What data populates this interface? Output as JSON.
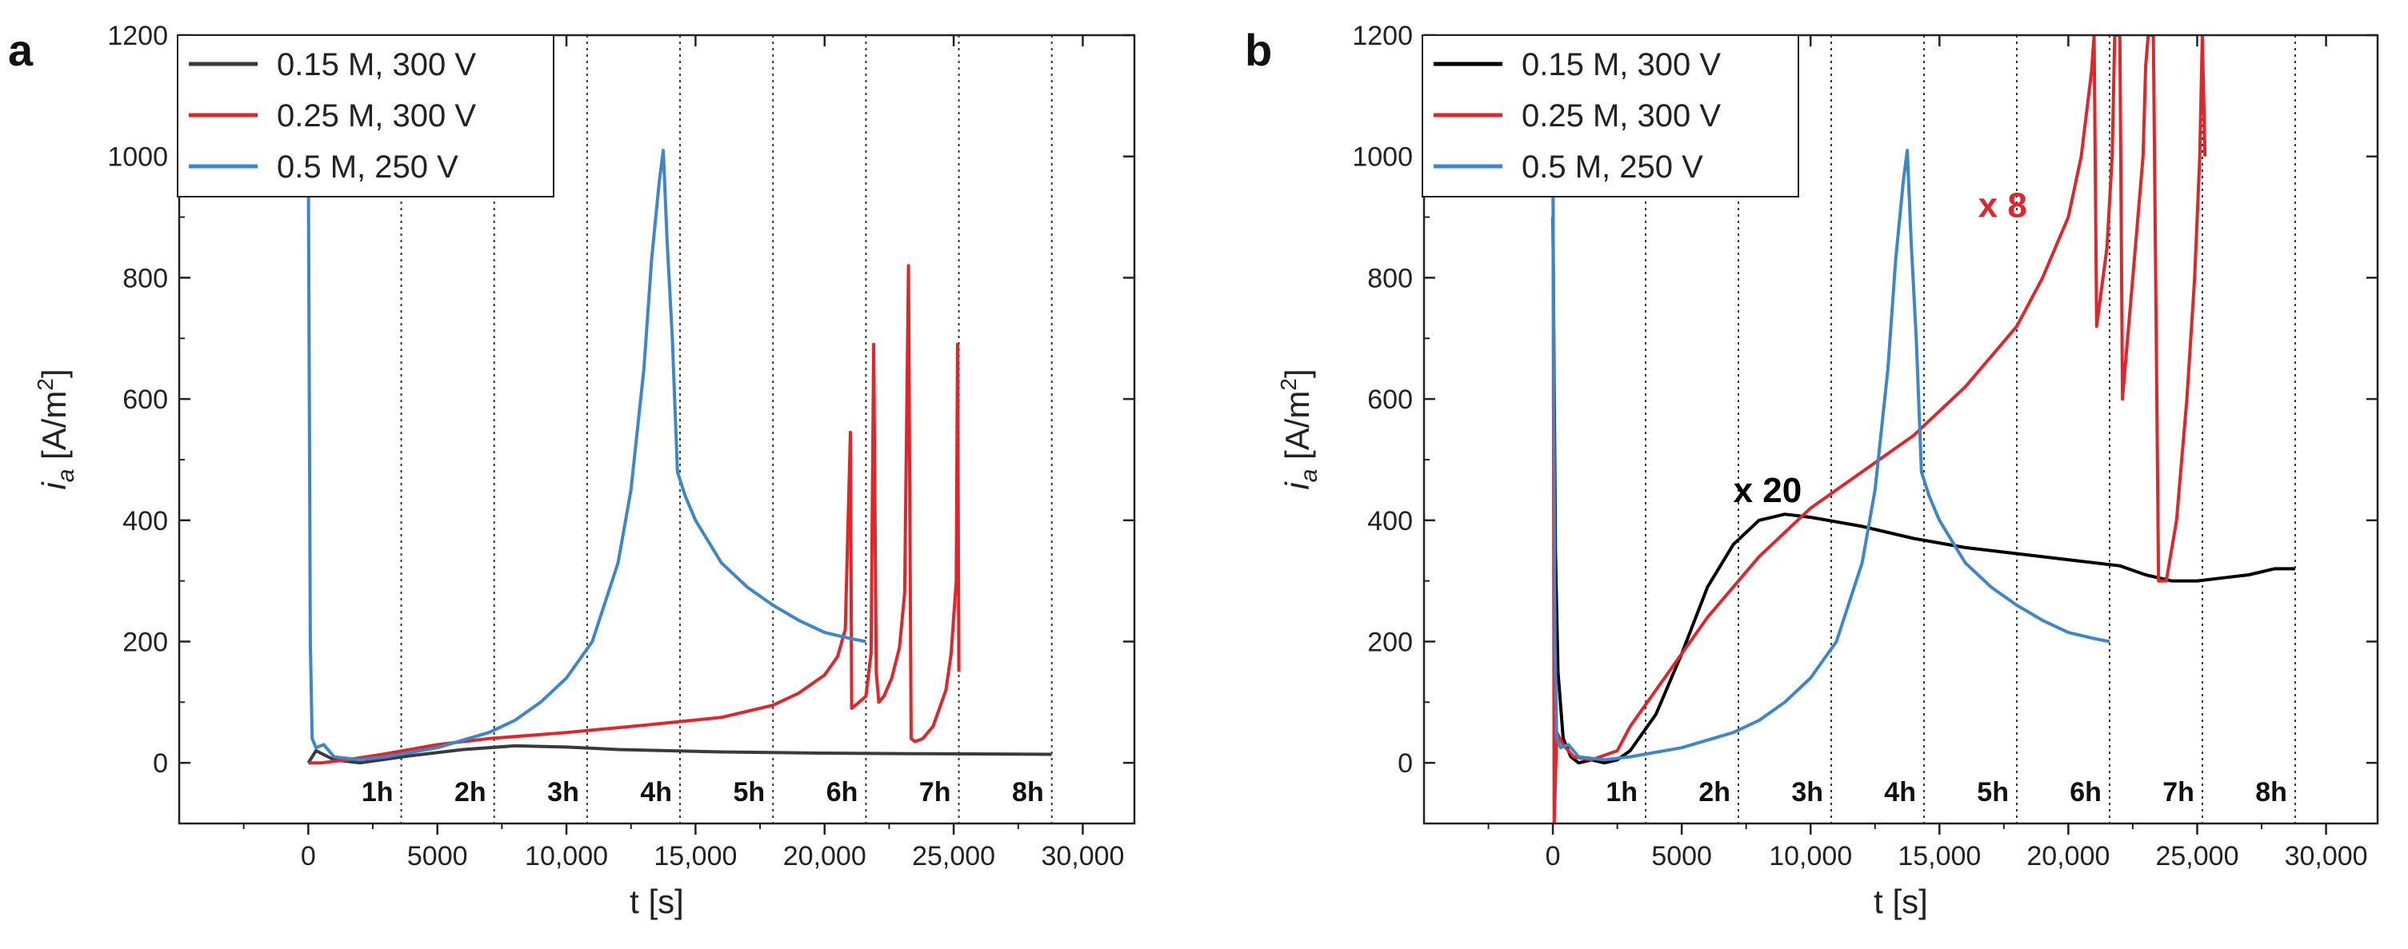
{
  "figure": {
    "panels": [
      "a",
      "b"
    ]
  },
  "colors": {
    "s015": "#3a3a3a",
    "s015b": "#000000",
    "s025": "#e0262b",
    "s05": "#3c86c9",
    "gridline": "#333333"
  },
  "chart_data": [
    {
      "panel": "a",
      "type": "line",
      "xlabel": "t [s]",
      "ylabel_main": "i",
      "ylabel_sub": "a",
      "ylabel_unit": " [A/m",
      "ylabel_sup": "2",
      "ylabel_close": "]",
      "xlim": [
        -5000,
        32000
      ],
      "ylim": [
        -100,
        1200
      ],
      "xticks": [
        0,
        5000,
        10000,
        15000,
        20000,
        25000,
        30000
      ],
      "xtick_labels": [
        "0",
        "5000",
        "10,000",
        "15,000",
        "20,000",
        "25,000",
        "30,000"
      ],
      "yticks": [
        0,
        200,
        400,
        600,
        800,
        1000,
        1200
      ],
      "ytick_labels": [
        "0",
        "200",
        "400",
        "600",
        "800",
        "1000",
        "1200"
      ],
      "hour_lines": [
        3600,
        7200,
        10800,
        14400,
        18000,
        21600,
        25200,
        28800
      ],
      "hour_labels": [
        "1h",
        "2h",
        "3h",
        "4h",
        "5h",
        "6h",
        "7h",
        "8h"
      ],
      "legend": [
        "0.15 M, 300 V",
        "0.25 M, 300 V",
        "0.5 M, 250 V"
      ],
      "annotations": [],
      "series": [
        {
          "name": "0.15 M, 300 V",
          "color_key": "s015",
          "x": [
            0,
            300,
            1000,
            2000,
            4000,
            6000,
            8000,
            10000,
            12000,
            16000,
            20000,
            24000,
            28800
          ],
          "y": [
            0,
            20,
            5,
            0,
            12,
            22,
            28,
            26,
            22,
            18,
            16,
            15,
            14
          ]
        },
        {
          "name": "0.25 M, 300 V",
          "color_key": "s025",
          "x": [
            0,
            100,
            500,
            1500,
            3000,
            5000,
            7000,
            10000,
            13000,
            16000,
            18000,
            19000,
            20000,
            20500,
            20800,
            21000,
            21050,
            21200,
            21600,
            21800,
            21900,
            22000,
            22100,
            22300,
            22600,
            22900,
            23100,
            23250,
            23350,
            23500,
            23800,
            24200,
            24700,
            24900,
            25100,
            25150,
            25200
          ],
          "y": [
            0,
            0,
            0,
            5,
            15,
            30,
            40,
            50,
            62,
            75,
            95,
            115,
            145,
            175,
            220,
            545,
            90,
            95,
            110,
            180,
            690,
            150,
            100,
            110,
            140,
            190,
            280,
            820,
            40,
            35,
            40,
            60,
            120,
            180,
            300,
            690,
            150
          ]
        },
        {
          "name": "0.5 M, 250 V",
          "color_key": "s05",
          "x": [
            0,
            80,
            150,
            300,
            600,
            1000,
            2000,
            3000,
            5000,
            7000,
            8000,
            9000,
            10000,
            11000,
            12000,
            12500,
            13000,
            13300,
            13600,
            13750,
            13900,
            14100,
            14300,
            14600,
            15000,
            16000,
            17000,
            18000,
            19000,
            20000,
            21000,
            21600
          ],
          "y": [
            1000,
            200,
            40,
            25,
            30,
            10,
            5,
            10,
            25,
            50,
            70,
            100,
            140,
            200,
            330,
            450,
            650,
            830,
            960,
            1010,
            860,
            700,
            480,
            440,
            400,
            330,
            290,
            260,
            235,
            215,
            205,
            200
          ]
        }
      ]
    },
    {
      "panel": "b",
      "type": "line",
      "xlabel": "t [s]",
      "ylabel_main": "i",
      "ylabel_sub": "a",
      "ylabel_unit": " [A/m",
      "ylabel_sup": "2",
      "ylabel_close": "]",
      "xlim": [
        -5000,
        32000
      ],
      "ylim": [
        -100,
        1200
      ],
      "xticks": [
        0,
        5000,
        10000,
        15000,
        20000,
        25000,
        30000
      ],
      "xtick_labels": [
        "0",
        "5000",
        "10,000",
        "15,000",
        "20,000",
        "25,000",
        "30,000"
      ],
      "yticks": [
        0,
        200,
        400,
        600,
        800,
        1000,
        1200
      ],
      "ytick_labels": [
        "0",
        "200",
        "400",
        "600",
        "800",
        "1000",
        "1200"
      ],
      "hour_lines": [
        3600,
        7200,
        10800,
        14400,
        18000,
        21600,
        25200,
        28800
      ],
      "hour_labels": [
        "1h",
        "2h",
        "3h",
        "4h",
        "5h",
        "6h",
        "7h",
        "8h"
      ],
      "legend": [
        "0.15 M, 300 V",
        "0.25 M, 300 V",
        "0.5 M, 250 V"
      ],
      "annotations": [
        {
          "text": "x 20",
          "x": 7000,
          "y": 430,
          "color_key": "s015b"
        },
        {
          "text": "x 8",
          "x": 16500,
          "y": 900,
          "color_key": "s025"
        }
      ],
      "series": [
        {
          "name": "0.15 M, 300 V",
          "color_key": "s015b",
          "x": [
            0,
            100,
            200,
            400,
            700,
            1000,
            1500,
            2000,
            2500,
            3000,
            4000,
            5000,
            6000,
            7000,
            8000,
            9000,
            10000,
            12000,
            14000,
            16000,
            18000,
            20000,
            22000,
            23000,
            24000,
            25000,
            26000,
            27000,
            28000,
            28800
          ],
          "y": [
            900,
            350,
            150,
            40,
            10,
            0,
            5,
            0,
            5,
            20,
            80,
            180,
            290,
            360,
            400,
            410,
            405,
            390,
            370,
            355,
            345,
            335,
            325,
            310,
            300,
            300,
            305,
            310,
            320,
            320
          ]
        },
        {
          "name": "0.25 M, 300 V",
          "color_key": "s025",
          "x": [
            0,
            50,
            150,
            400,
            800,
            1500,
            2500,
            3000,
            4000,
            5000,
            6000,
            7000,
            8000,
            9000,
            10000,
            11000,
            12000,
            13000,
            14000,
            15000,
            16000,
            17000,
            18000,
            19000,
            20000,
            20500,
            20900,
            21000,
            21100,
            21500,
            21700,
            21800,
            21900,
            22000,
            22100,
            22300,
            22600,
            22900,
            23000,
            23100,
            23200,
            23300,
            23500,
            23800,
            24200,
            24600,
            24900,
            25100,
            25200,
            25300
          ],
          "y": [
            1200,
            -100,
            50,
            30,
            10,
            5,
            20,
            60,
            120,
            180,
            240,
            290,
            340,
            380,
            420,
            450,
            480,
            510,
            540,
            580,
            620,
            670,
            720,
            800,
            900,
            1000,
            1140,
            1200,
            720,
            850,
            1000,
            1200,
            1200,
            1200,
            600,
            700,
            850,
            1000,
            1150,
            1200,
            1200,
            1200,
            300,
            300,
            400,
            600,
            800,
            1000,
            1200,
            1000
          ]
        },
        {
          "name": "0.5 M, 250 V",
          "color_key": "s05",
          "x": [
            0,
            80,
            150,
            300,
            600,
            1000,
            2000,
            3000,
            5000,
            7000,
            8000,
            9000,
            10000,
            11000,
            12000,
            12500,
            13000,
            13300,
            13600,
            13750,
            13900,
            14100,
            14300,
            14600,
            15000,
            16000,
            17000,
            18000,
            19000,
            20000,
            21000,
            21600
          ],
          "y": [
            1000,
            200,
            40,
            25,
            30,
            10,
            5,
            10,
            25,
            50,
            70,
            100,
            140,
            200,
            330,
            450,
            650,
            830,
            960,
            1010,
            860,
            700,
            480,
            440,
            400,
            330,
            290,
            260,
            235,
            215,
            205,
            200
          ]
        }
      ]
    }
  ]
}
